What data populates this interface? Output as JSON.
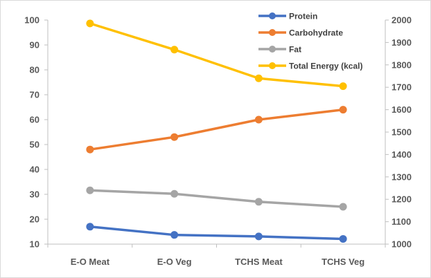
{
  "chart_data": {
    "type": "line",
    "categories": [
      "E-O Meat",
      "E-O Veg",
      "TCHS Meat",
      "TCHS Veg"
    ],
    "y_left": {
      "ylim": [
        10,
        100
      ],
      "ticks": [
        10,
        20,
        30,
        40,
        50,
        60,
        70,
        80,
        90,
        100
      ]
    },
    "y_right": {
      "ylim": [
        1000,
        2000
      ],
      "ticks": [
        1000,
        1100,
        1200,
        1300,
        1400,
        1500,
        1600,
        1700,
        1800,
        1900,
        2000
      ]
    },
    "legend_position": "top-right",
    "grid": false,
    "series": [
      {
        "name": "Protein",
        "axis": "left",
        "color": "#4472C4",
        "values": [
          17,
          13.7,
          13.1,
          12.1
        ]
      },
      {
        "name": "Carbohydrate",
        "axis": "left",
        "color": "#ED7D31",
        "values": [
          48,
          53,
          60,
          64
        ]
      },
      {
        "name": "Fat",
        "axis": "left",
        "color": "#A5A5A5",
        "values": [
          31.6,
          30.2,
          27,
          25
        ]
      },
      {
        "name": "Total Energy (kcal)",
        "axis": "right",
        "color": "#FFC000",
        "values": [
          1985,
          1868,
          1740,
          1705
        ]
      }
    ]
  }
}
